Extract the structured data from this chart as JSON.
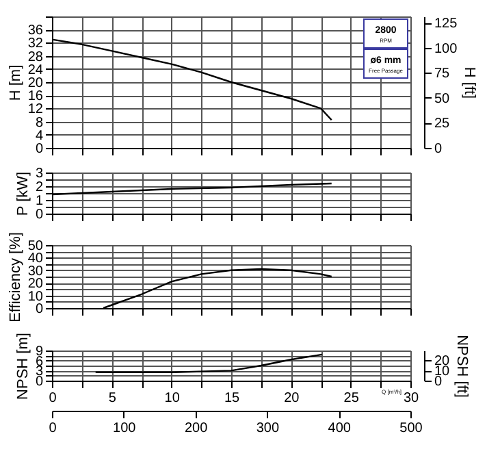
{
  "chart_data": [
    {
      "type": "line",
      "ylabel": "H [m]",
      "y2label": "H [ft]",
      "xlim": [
        0,
        30
      ],
      "xticks": [
        0,
        {
          "value": 2.5,
          "label": null
        },
        5,
        {
          "value": 7.5,
          "label": null
        },
        10,
        {
          "value": 12.5,
          "label": null
        },
        15,
        {
          "value": 17.5,
          "label": null
        },
        20,
        {
          "value": 22.5,
          "label": null
        },
        25,
        {
          "value": 27.5,
          "label": null
        },
        30
      ],
      "ylim": [
        0,
        40
      ],
      "yticks": [
        0,
        4,
        8,
        12,
        16,
        20,
        24,
        28,
        32,
        36,
        {
          "value": 40,
          "label": null
        }
      ],
      "y2lim": [
        0,
        131.2
      ],
      "y2ticks": [
        0,
        25,
        50,
        75,
        100,
        125
      ],
      "x": [
        0,
        2.5,
        5,
        7.5,
        10,
        12.5,
        15,
        17.5,
        20,
        22.5,
        23.4
      ],
      "series": [
        {
          "color": "#000000",
          "values": [
            33,
            31.5,
            29.5,
            27.5,
            25.5,
            23,
            20,
            17.5,
            15,
            12,
            8.5
          ]
        }
      ],
      "annotations": [
        "2800",
        "RPM",
        "ø6 mm",
        "Free Passage"
      ],
      "grid": true,
      "tick_labels": "y"
    },
    {
      "type": "line",
      "ylabel": "P [kW]",
      "xlim": [
        0,
        30
      ],
      "xticks": [
        0,
        2.5,
        5,
        7.5,
        10,
        12.5,
        15,
        17.5,
        20,
        22.5,
        25,
        27.5,
        30
      ],
      "ylim": [
        0,
        3
      ],
      "yticks": [
        0,
        {
          "value": 0.5,
          "label": null
        },
        1,
        {
          "value": 1.5,
          "label": null
        },
        2,
        {
          "value": 2.5,
          "label": null
        },
        3
      ],
      "x": [
        0,
        5,
        10,
        15,
        20,
        23.4
      ],
      "series": [
        {
          "color": "#000000",
          "values": [
            1.4,
            1.6,
            1.8,
            1.9,
            2.1,
            2.2
          ]
        }
      ],
      "grid": true,
      "tick_labels": "y"
    },
    {
      "type": "line",
      "ylabel": "Efficiency [%]",
      "xlim": [
        0,
        30
      ],
      "xticks": [
        0,
        2.5,
        5,
        7.5,
        10,
        12.5,
        15,
        17.5,
        20,
        22.5,
        25,
        27.5,
        30
      ],
      "ylim": [
        0,
        50
      ],
      "yticks": [
        0,
        {
          "value": 5,
          "label": null
        },
        10,
        {
          "value": 15,
          "label": null
        },
        20,
        {
          "value": 25,
          "label": null
        },
        30,
        {
          "value": 35,
          "label": null
        },
        40,
        {
          "value": 45,
          "label": null
        },
        50
      ],
      "x": [
        4.3,
        7.5,
        10,
        12.5,
        15,
        17.5,
        20,
        22.5,
        23.4
      ],
      "series": [
        {
          "color": "#000000",
          "values": [
            0,
            11,
            21,
            27,
            30,
            31,
            30,
            27,
            25
          ]
        }
      ],
      "grid": true,
      "tick_labels": "y"
    },
    {
      "type": "line",
      "ylabel": "NPSH [m]",
      "y2label": "NPSH [ft]",
      "xlabel": "Q [m³/h]",
      "xlim": [
        0,
        30
      ],
      "xticks": [
        0,
        {
          "value": 2.5,
          "label": null
        },
        5,
        {
          "value": 7.5,
          "label": null
        },
        10,
        {
          "value": 12.5,
          "label": null
        },
        15,
        {
          "value": 17.5,
          "label": null
        },
        20,
        {
          "value": 22.5,
          "label": null
        },
        25,
        {
          "value": 27.5,
          "label": null
        },
        30
      ],
      "ylim": [
        0,
        9
      ],
      "yticks": [
        0,
        {
          "value": 1.5,
          "label": null
        },
        3,
        {
          "value": 4.5,
          "label": null
        },
        6,
        {
          "value": 7.5,
          "label": null
        },
        9
      ],
      "y2lim": [
        0,
        29.5
      ],
      "y2ticks": [
        0,
        10,
        20
      ],
      "x2lim": [
        0,
        500
      ],
      "x2ticks": [
        0,
        100,
        200,
        300,
        400,
        500
      ],
      "x": [
        3.65,
        10,
        15,
        17.5,
        20,
        22.6
      ],
      "series": [
        {
          "color": "#000000",
          "values": [
            2.5,
            2.5,
            3.0,
            4.5,
            6.3,
            7.8
          ]
        }
      ],
      "grid": true
    }
  ]
}
